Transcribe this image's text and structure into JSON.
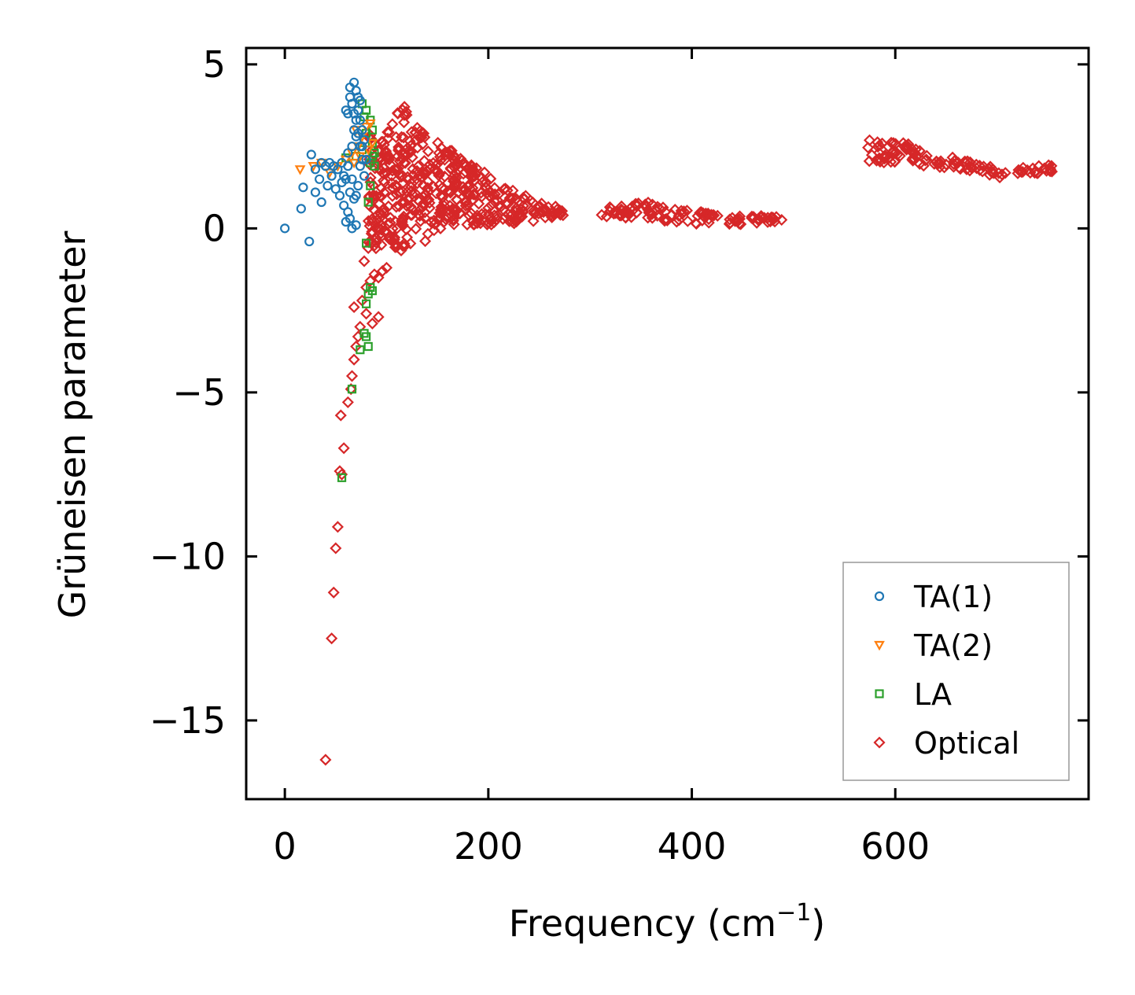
{
  "chart_data": {
    "type": "scatter",
    "xlabel": "Frequency (cm",
    "xlabel_sup": "−1",
    "xlabel_close": ")",
    "ylabel": "Grüneisen parameter",
    "xlim": [
      -38,
      790
    ],
    "ylim": [
      -17.4,
      5.5
    ],
    "xticks": [
      0,
      200,
      400,
      600
    ],
    "xtick_labels": [
      "0",
      "200",
      "400",
      "600"
    ],
    "yticks": [
      5,
      0,
      -5,
      -10,
      -15
    ],
    "ytick_labels": [
      "5",
      "0",
      "−5",
      "−10",
      "−15"
    ],
    "legend_position": "bottom-right",
    "series": [
      {
        "name": "TA(1)",
        "marker": "circle",
        "color": "#1f77b4",
        "points": [
          [
            0,
            0
          ],
          [
            24,
            -0.4
          ],
          [
            16,
            0.6
          ],
          [
            18,
            1.25
          ],
          [
            26,
            2.25
          ],
          [
            30,
            1.8
          ],
          [
            30,
            1.1
          ],
          [
            34,
            1.5
          ],
          [
            36,
            2.0
          ],
          [
            36,
            0.8
          ],
          [
            40,
            1.9
          ],
          [
            42,
            1.3
          ],
          [
            44,
            2.0
          ],
          [
            46,
            1.6
          ],
          [
            48,
            1.9
          ],
          [
            50,
            1.2
          ],
          [
            52,
            1.8
          ],
          [
            54,
            1.0
          ],
          [
            56,
            2.0
          ],
          [
            58,
            0.7
          ],
          [
            60,
            1.5
          ],
          [
            60,
            0.2
          ],
          [
            62,
            0.5
          ],
          [
            62,
            2.3
          ],
          [
            64,
            0.3
          ],
          [
            64,
            1.1
          ],
          [
            66,
            0.0
          ],
          [
            66,
            2.5
          ],
          [
            68,
            0.9
          ],
          [
            68,
            3.0
          ],
          [
            68,
            4.45
          ],
          [
            70,
            0.1
          ],
          [
            70,
            3.3
          ],
          [
            70,
            4.2
          ],
          [
            72,
            1.3
          ],
          [
            72,
            3.6
          ],
          [
            74,
            1.9
          ],
          [
            74,
            3.9
          ],
          [
            76,
            2.1
          ],
          [
            76,
            2.5
          ],
          [
            78,
            2.7
          ],
          [
            78,
            1.6
          ],
          [
            80,
            2.1
          ],
          [
            62,
            3.5
          ],
          [
            64,
            4.0
          ],
          [
            66,
            3.8
          ],
          [
            68,
            3.5
          ],
          [
            70,
            2.8
          ],
          [
            72,
            2.9
          ],
          [
            74,
            3.3
          ],
          [
            60,
            3.6
          ],
          [
            62,
            1.9
          ],
          [
            58,
            1.6
          ],
          [
            56,
            1.4
          ],
          [
            66,
            1.5
          ],
          [
            70,
            1.0
          ],
          [
            74,
            2.5
          ],
          [
            76,
            3.0
          ],
          [
            64,
            4.3
          ],
          [
            72,
            4.0
          ]
        ]
      },
      {
        "name": "TA(2)",
        "marker": "triangle",
        "color": "#ff7f0e",
        "points": [
          [
            15,
            1.8
          ],
          [
            28,
            1.9
          ],
          [
            36,
            2.0
          ],
          [
            44,
            1.7
          ],
          [
            52,
            1.9
          ],
          [
            60,
            2.1
          ],
          [
            66,
            2.3
          ],
          [
            72,
            2.5
          ],
          [
            76,
            2.8
          ],
          [
            80,
            3.1
          ],
          [
            82,
            2.4
          ],
          [
            84,
            3.2
          ],
          [
            86,
            2.6
          ],
          [
            70,
            3.0
          ],
          [
            74,
            2.2
          ],
          [
            68,
            2.0
          ]
        ]
      },
      {
        "name": "LA",
        "marker": "square",
        "color": "#2ca02c",
        "points": [
          [
            56,
            -7.6
          ],
          [
            66,
            -4.9
          ],
          [
            74,
            -3.7
          ],
          [
            78,
            -3.2
          ],
          [
            80,
            -3.3
          ],
          [
            82,
            -3.6
          ],
          [
            80,
            -2.3
          ],
          [
            82,
            -2.0
          ],
          [
            84,
            -1.8
          ],
          [
            86,
            -1.9
          ],
          [
            80,
            -0.45
          ],
          [
            82,
            0.8
          ],
          [
            84,
            1.3
          ],
          [
            84,
            2.0
          ],
          [
            86,
            2.2
          ],
          [
            86,
            2.6
          ],
          [
            86,
            3.0
          ],
          [
            84,
            3.3
          ],
          [
            80,
            3.6
          ],
          [
            80,
            2.9
          ],
          [
            76,
            3.8
          ],
          [
            78,
            3.4
          ],
          [
            76,
            2.4
          ],
          [
            60,
            2.15
          ],
          [
            70,
            2.2
          ],
          [
            88,
            2.3
          ],
          [
            88,
            1.9
          ]
        ]
      },
      {
        "name": "Optical",
        "marker": "diamond",
        "color": "#d62728",
        "points": [
          [
            40,
            -16.2
          ],
          [
            46,
            -12.5
          ],
          [
            48,
            -11.1
          ],
          [
            50,
            -9.75
          ],
          [
            52,
            -9.1
          ],
          [
            54,
            -7.4
          ],
          [
            56,
            -7.5
          ],
          [
            58,
            -6.7
          ],
          [
            55,
            -5.7
          ],
          [
            62,
            -5.3
          ],
          [
            65,
            -4.9
          ],
          [
            66,
            -4.5
          ],
          [
            68,
            -4.0
          ],
          [
            70,
            -3.6
          ],
          [
            72,
            -3.3
          ],
          [
            74,
            -3.0
          ],
          [
            68,
            -2.4
          ],
          [
            76,
            -2.2
          ],
          [
            80,
            -2.6
          ],
          [
            86,
            -2.9
          ],
          [
            92,
            -2.7
          ],
          [
            80,
            -1.8
          ],
          [
            84,
            -1.6
          ],
          [
            88,
            -1.4
          ],
          [
            92,
            -1.5
          ],
          [
            96,
            -1.3
          ],
          [
            100,
            -1.2
          ],
          [
            78,
            -1.0
          ],
          [
            82,
            -0.6
          ],
          [
            90,
            -0.3
          ],
          [
            86,
            0.2
          ],
          [
            98,
            -0.1
          ]
        ],
        "clusters": [
          {
            "x_from": 82,
            "x_to": 120,
            "y_low_from": -0.6,
            "y_low_to": -0.7,
            "y_high_from": 2.9,
            "y_high_to": 3.8,
            "n": 160
          },
          {
            "x_from": 120,
            "x_to": 170,
            "y_low_from": -0.7,
            "y_low_to": 0.1,
            "y_high_from": 3.4,
            "y_high_to": 2.3,
            "n": 160
          },
          {
            "x_from": 170,
            "x_to": 210,
            "y_low_from": 0.1,
            "y_low_to": 0.1,
            "y_high_from": 2.4,
            "y_high_to": 1.4,
            "n": 90
          },
          {
            "x_from": 210,
            "x_to": 250,
            "y_low_from": 0.1,
            "y_low_to": 0.2,
            "y_high_from": 1.3,
            "y_high_to": 0.9,
            "n": 50
          },
          {
            "x_from": 250,
            "x_to": 276,
            "y_low_from": 0.3,
            "y_low_to": 0.35,
            "y_high_from": 0.8,
            "y_high_to": 0.6,
            "n": 22
          },
          {
            "x_from": 310,
            "x_to": 360,
            "y_low_from": 0.35,
            "y_low_to": 0.3,
            "y_high_from": 0.65,
            "y_high_to": 0.8,
            "n": 40
          },
          {
            "x_from": 360,
            "x_to": 420,
            "y_low_from": 0.25,
            "y_low_to": 0.1,
            "y_high_from": 0.75,
            "y_high_to": 0.45,
            "n": 40
          },
          {
            "x_from": 420,
            "x_to": 490,
            "y_low_from": 0.1,
            "y_low_to": 0.15,
            "y_high_from": 0.45,
            "y_high_to": 0.35,
            "n": 36
          },
          {
            "x_from": 572,
            "x_to": 615,
            "y_low_from": 2.0,
            "y_low_to": 2.0,
            "y_high_from": 2.7,
            "y_high_to": 2.6,
            "n": 40
          },
          {
            "x_from": 615,
            "x_to": 650,
            "y_low_from": 2.0,
            "y_low_to": 1.75,
            "y_high_from": 2.5,
            "y_high_to": 2.0,
            "n": 26
          },
          {
            "x_from": 655,
            "x_to": 710,
            "y_low_from": 1.85,
            "y_low_to": 1.5,
            "y_high_from": 2.2,
            "y_high_to": 1.8,
            "n": 36
          },
          {
            "x_from": 720,
            "x_to": 755,
            "y_low_from": 1.65,
            "y_low_to": 1.7,
            "y_high_from": 1.85,
            "y_high_to": 1.95,
            "n": 22
          }
        ]
      }
    ]
  }
}
